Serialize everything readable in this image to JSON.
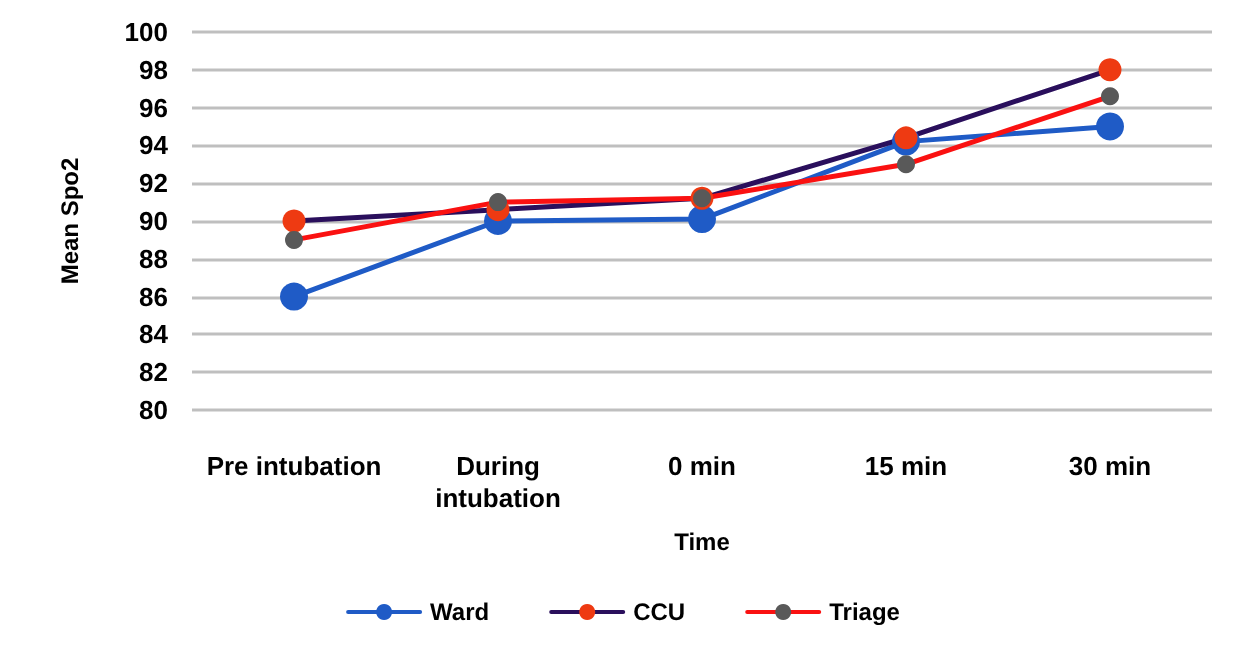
{
  "chart_data": {
    "type": "line",
    "xlabel": "Time",
    "ylabel": "Mean Spo2",
    "categories": [
      "Pre intubation",
      "During\nintubation",
      "0 min",
      "15 min",
      "30 min"
    ],
    "series": [
      {
        "name": "Ward",
        "color": "#1f5bc6",
        "colors": [
          "#1f5bc6",
          "#1f5bc6",
          "#1f5bc6",
          "#1f5bc6",
          "#1f5bc6"
        ],
        "values": [
          86,
          90,
          90.1,
          94.2,
          95
        ]
      },
      {
        "name": "CCU",
        "color": "#2a0f5c",
        "colors": [
          "#ee3a12",
          "#ee3a12",
          "#ee3a12",
          "#ee3a12",
          "#ee3a12"
        ],
        "values": [
          90,
          90.6,
          91.2,
          94.4,
          98
        ]
      },
      {
        "name": "Triage",
        "color": "#fa1111",
        "colors": [
          "#595959",
          "#595959",
          "#595959",
          "#595959",
          "#595959"
        ],
        "values": [
          89,
          91,
          91.2,
          93,
          96.6
        ]
      }
    ],
    "ylim": [
      80,
      100
    ],
    "yticks": [
      80,
      82,
      84,
      86,
      88,
      90,
      92,
      94,
      96,
      98,
      100
    ],
    "grid": "y",
    "legend": "bottom",
    "marker": "circle",
    "line_style": "solid"
  }
}
